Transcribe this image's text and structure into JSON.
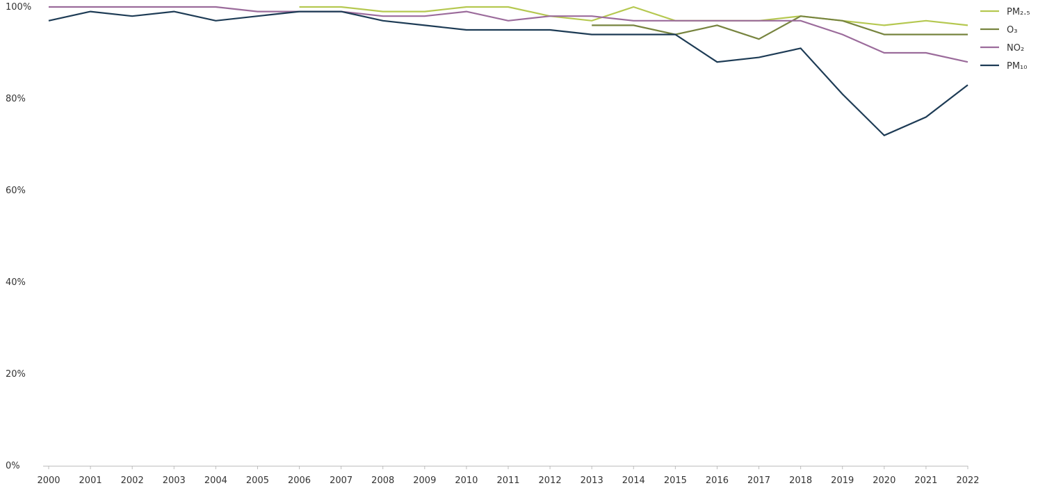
{
  "chart_data": {
    "type": "line",
    "title": "",
    "xlabel": "",
    "ylabel": "",
    "x": [
      "2000",
      "2001",
      "2002",
      "2003",
      "2004",
      "2005",
      "2006",
      "2007",
      "2008",
      "2009",
      "2010",
      "2011",
      "2012",
      "2013",
      "2014",
      "2015",
      "2016",
      "2017",
      "2018",
      "2019",
      "2020",
      "2021",
      "2022"
    ],
    "y_ticks": [
      0,
      20,
      40,
      60,
      80,
      100
    ],
    "y_tick_labels": [
      "0%",
      "20%",
      "40%",
      "60%",
      "80%",
      "100%"
    ],
    "ylim": [
      0,
      100
    ],
    "grid": false,
    "legend_position": "top-right",
    "series": [
      {
        "name": "PM₂.₅",
        "color": "#b5c850",
        "values": [
          null,
          null,
          null,
          null,
          null,
          null,
          100,
          100,
          99,
          99,
          100,
          100,
          98,
          97,
          100,
          97,
          97,
          97,
          98,
          97,
          96,
          97,
          96
        ]
      },
      {
        "name": "O₃",
        "color": "#77843f",
        "values": [
          null,
          null,
          null,
          null,
          null,
          null,
          null,
          null,
          null,
          null,
          null,
          null,
          null,
          96,
          96,
          94,
          96,
          93,
          98,
          97,
          94,
          94,
          94
        ]
      },
      {
        "name": "NO₂",
        "color": "#9b6b9b",
        "values": [
          100,
          100,
          100,
          100,
          100,
          99,
          99,
          99,
          98,
          98,
          99,
          97,
          98,
          98,
          97,
          97,
          97,
          97,
          97,
          94,
          90,
          90,
          88
        ]
      },
      {
        "name": "PM₁₀",
        "color": "#1d3b55",
        "values": [
          97,
          99,
          98,
          99,
          97,
          98,
          99,
          99,
          97,
          96,
          95,
          95,
          95,
          94,
          94,
          94,
          88,
          89,
          91,
          81,
          72,
          76,
          83
        ]
      }
    ]
  }
}
